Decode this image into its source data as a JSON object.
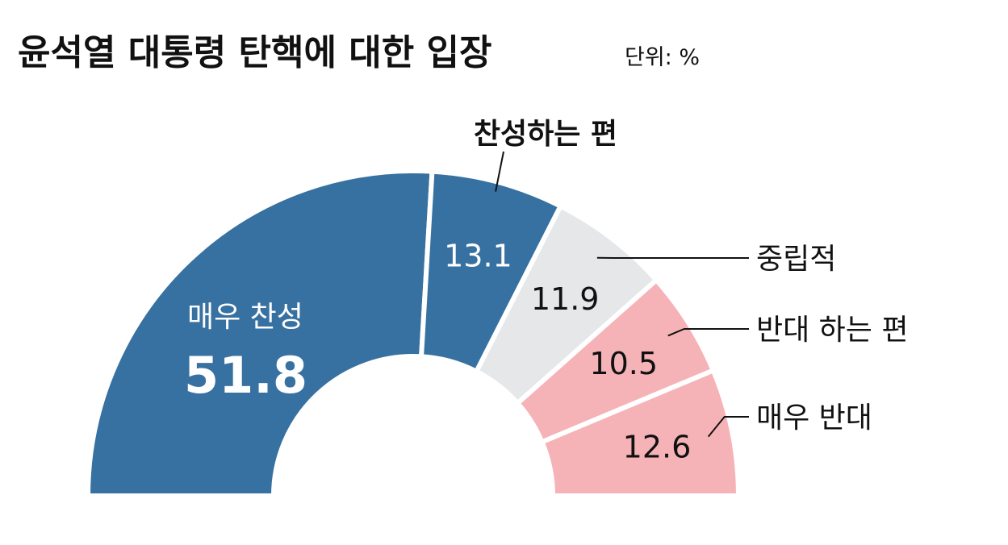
{
  "chart_data": {
    "type": "pie",
    "variant": "semi-donut",
    "title": "윤석열 대통령 탄핵에 대한 입장",
    "unit_label": "단위: %",
    "categories": [
      "매우 찬성",
      "찬성하는 편",
      "중립적",
      "반대 하는 편",
      "매우 반대"
    ],
    "values": [
      51.8,
      13.1,
      11.9,
      10.5,
      12.6
    ],
    "value_labels": [
      "51.8",
      "13.1",
      "11.9",
      "10.5",
      "12.6"
    ],
    "colors": [
      "#3771a1",
      "#3771a1",
      "#e6e7e9",
      "#f6b3b7",
      "#f6b3b7"
    ]
  }
}
